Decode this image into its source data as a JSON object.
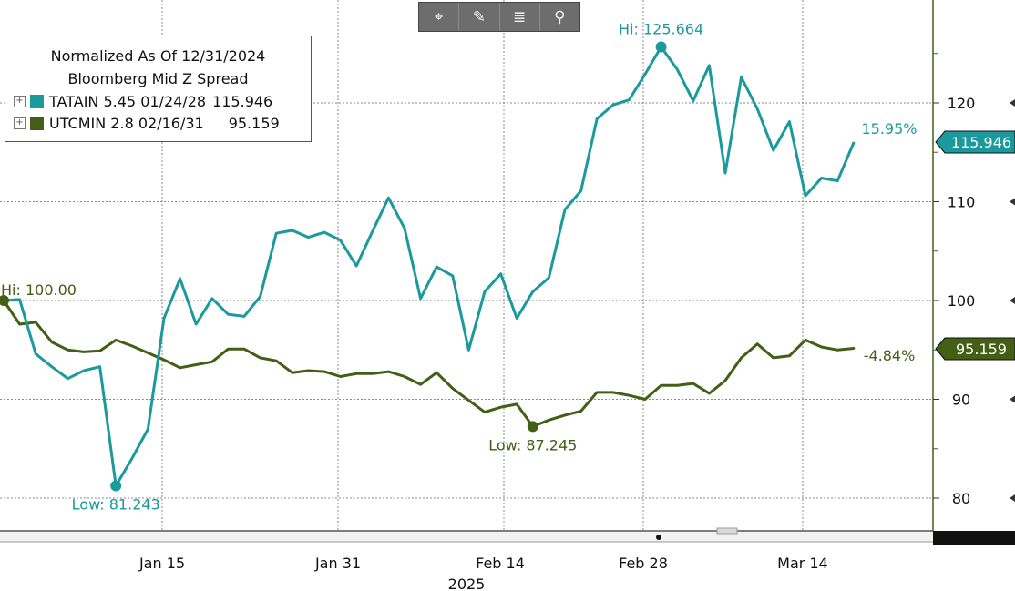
{
  "toolbar": {
    "buttons": [
      {
        "name": "crosshair-icon",
        "glyph": "⌖"
      },
      {
        "name": "draw-pen-icon",
        "glyph": "✎"
      },
      {
        "name": "table-list-icon",
        "glyph": "≣"
      },
      {
        "name": "zoom-magnifier-icon",
        "glyph": "⚲"
      }
    ]
  },
  "legend": {
    "title_line1": "Normalized As Of 12/31/2024",
    "title_line2": "Bloomberg Mid Z Spread",
    "expand_glyph": "+",
    "rows": [
      {
        "label": "TATAIN 5.45 01/24/28",
        "value": "115.946",
        "color": "#1a9a9c"
      },
      {
        "label": "UTCMIN 2.8 02/16/31",
        "value": "95.159",
        "color": "#435e15"
      }
    ]
  },
  "chart_data": {
    "type": "line",
    "title": "Normalized As Of 12/31/2024",
    "subtitle": "Bloomberg Mid Z Spread",
    "x_tick_labels": [
      "Jan 15",
      "Jan 31",
      "Feb 14",
      "Feb 28",
      "Mar 14"
    ],
    "x_year_label": "2025",
    "y_ticks": [
      80,
      90,
      100,
      110,
      120
    ],
    "ylim": [
      76.5,
      130.5
    ],
    "grid": true,
    "legend_position": "top-left",
    "series": [
      {
        "name": "TATAIN 5.45 01/24/28",
        "color": "#1a9a9c",
        "last_value": "115.946",
        "change_label": "15.95%",
        "values": [
          100.0,
          100.1,
          94.6,
          93.3,
          92.1,
          92.9,
          93.3,
          81.24,
          84.0,
          87.0,
          98.2,
          102.2,
          97.6,
          100.2,
          98.6,
          98.4,
          100.4,
          106.8,
          107.1,
          106.4,
          106.9,
          106.1,
          103.5,
          107.0,
          110.4,
          107.3,
          100.2,
          103.4,
          102.5,
          95.0,
          100.9,
          102.7,
          98.2,
          100.9,
          102.3,
          109.2,
          111.1,
          118.4,
          119.8,
          120.3,
          122.9,
          125.664,
          123.4,
          120.2,
          123.8,
          112.9,
          122.6,
          119.4,
          115.2,
          118.1,
          110.6,
          112.4,
          112.1,
          115.946
        ],
        "hi": {
          "label": "Hi: 125.664",
          "index": 41,
          "value": 125.664
        },
        "low": {
          "label": "Low: 81.243",
          "index": 7,
          "value": 81.243
        }
      },
      {
        "name": "UTCMIN 2.8 02/16/31",
        "color": "#435e15",
        "last_value": "95.159",
        "change_label": "-4.84%",
        "values": [
          100.0,
          97.6,
          97.8,
          95.8,
          95.0,
          94.8,
          94.9,
          96.0,
          95.4,
          94.7,
          94.0,
          93.2,
          93.5,
          93.8,
          95.1,
          95.1,
          94.2,
          93.9,
          92.7,
          92.9,
          92.8,
          92.3,
          92.6,
          92.6,
          92.8,
          92.3,
          91.5,
          92.7,
          91.1,
          89.9,
          88.7,
          89.2,
          89.5,
          87.245,
          87.9,
          88.4,
          88.8,
          90.7,
          90.7,
          90.4,
          90.0,
          91.4,
          91.4,
          91.6,
          90.6,
          91.9,
          94.2,
          95.6,
          94.2,
          94.4,
          96.0,
          95.3,
          95.0,
          95.159
        ],
        "hi": {
          "label": "Hi: 100.00",
          "index": 0,
          "value": 100.0
        },
        "low": {
          "label": "Low: 87.245",
          "index": 33,
          "value": 87.245
        }
      }
    ]
  }
}
